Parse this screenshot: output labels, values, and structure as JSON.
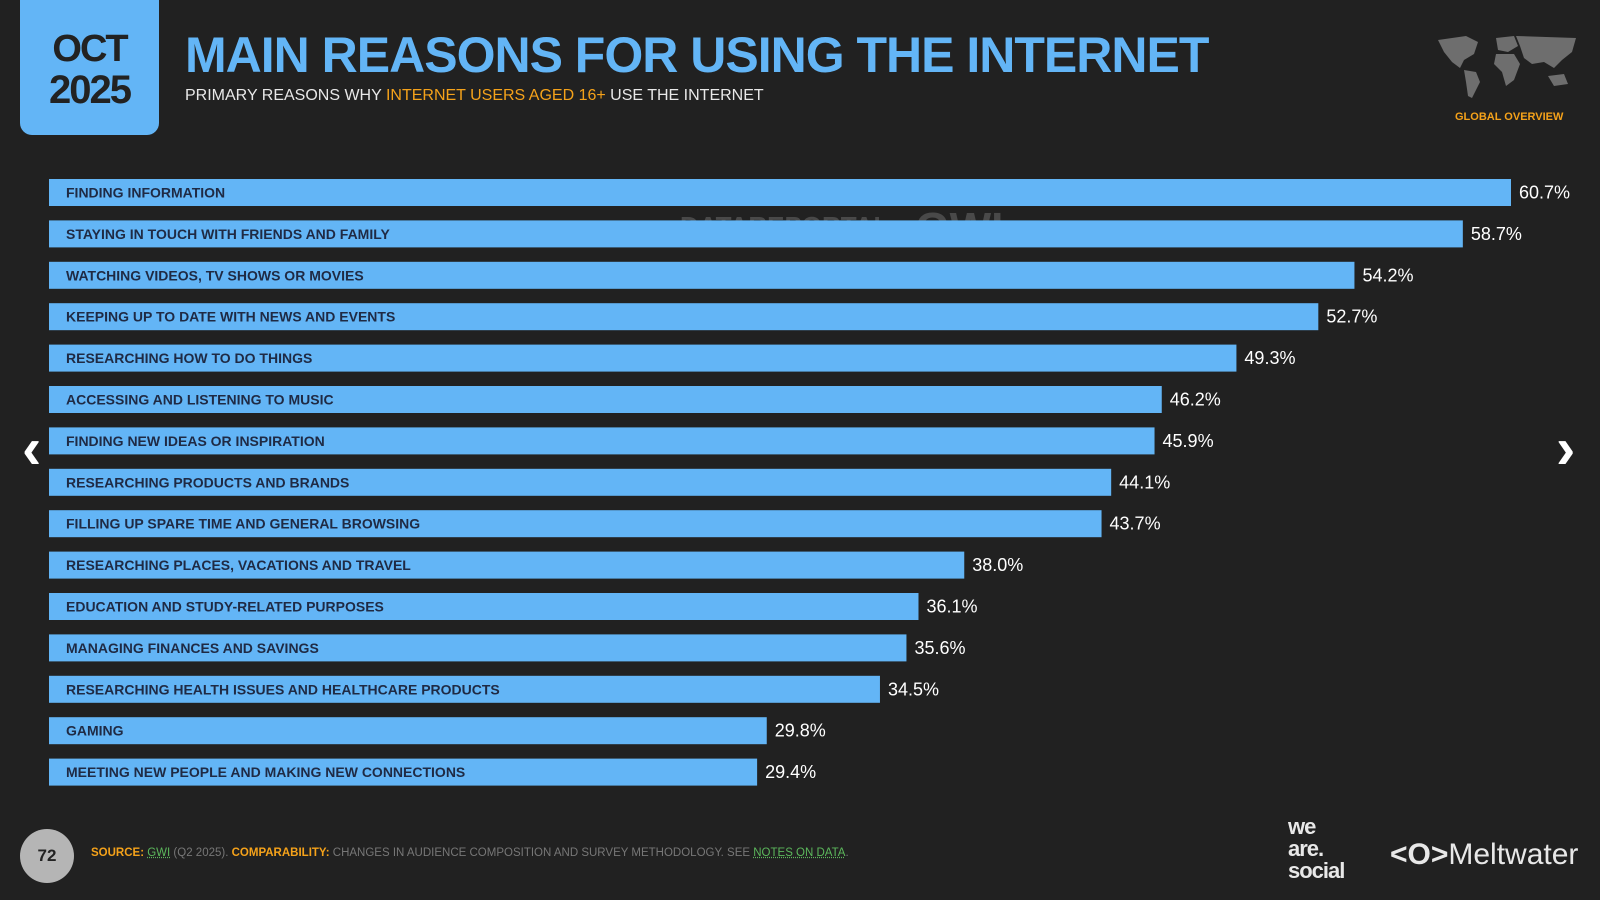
{
  "header": {
    "date_month": "OCT",
    "date_year": "2025",
    "title": "MAIN REASONS FOR USING THE INTERNET",
    "subtitle_pre": "PRIMARY REASONS WHY ",
    "subtitle_highlight": "INTERNET USERS AGED 16+",
    "subtitle_post": " USE THE INTERNET",
    "region_label": "GLOBAL OVERVIEW"
  },
  "watermark": {
    "brand1": "DATAREPORTAL",
    "brand2": "GWI."
  },
  "colors": {
    "bar": "#63b5f6",
    "background": "#212121",
    "accent": "#f5a21a",
    "label_text": "#1f2a44"
  },
  "chart_data": {
    "type": "bar",
    "orientation": "horizontal",
    "categories": [
      "FINDING INFORMATION",
      "STAYING IN TOUCH WITH FRIENDS AND FAMILY",
      "WATCHING VIDEOS, TV SHOWS OR MOVIES",
      "KEEPING UP TO DATE WITH NEWS AND EVENTS",
      "RESEARCHING HOW TO DO THINGS",
      "ACCESSING AND LISTENING TO MUSIC",
      "FINDING NEW IDEAS OR INSPIRATION",
      "RESEARCHING PRODUCTS AND BRANDS",
      "FILLING UP SPARE TIME AND GENERAL BROWSING",
      "RESEARCHING PLACES, VACATIONS AND TRAVEL",
      "EDUCATION AND STUDY-RELATED PURPOSES",
      "MANAGING FINANCES AND SAVINGS",
      "RESEARCHING HEALTH ISSUES AND HEALTHCARE PRODUCTS",
      "GAMING",
      "MEETING NEW PEOPLE AND MAKING NEW CONNECTIONS"
    ],
    "values": [
      60.7,
      58.7,
      54.2,
      52.7,
      49.3,
      46.2,
      45.9,
      44.1,
      43.7,
      38.0,
      36.1,
      35.6,
      34.5,
      29.8,
      29.4
    ],
    "value_labels": [
      "60.7%",
      "58.7%",
      "54.2%",
      "52.7%",
      "49.3%",
      "46.2%",
      "45.9%",
      "44.1%",
      "43.7%",
      "38.0%",
      "36.1%",
      "35.6%",
      "34.5%",
      "29.8%",
      "29.4%"
    ],
    "unit": "%",
    "grid": false
  },
  "footer": {
    "page_number": "72",
    "source_label": "SOURCE:",
    "source_link": "GWI",
    "source_detail": " (Q2 2025). ",
    "comparability_label": "COMPARABILITY:",
    "comparability_text": " CHANGES IN AUDIENCE COMPOSITION AND SURVEY METHODOLOGY. SEE ",
    "notes_link": "NOTES ON DATA",
    "notes_end": ".",
    "logo1_line1": "we",
    "logo1_line2": "are.",
    "logo1_line3": "social",
    "logo2": "Meltwater"
  },
  "navigation": {
    "prev_icon": "chevron-left-icon",
    "next_icon": "chevron-right-icon"
  }
}
